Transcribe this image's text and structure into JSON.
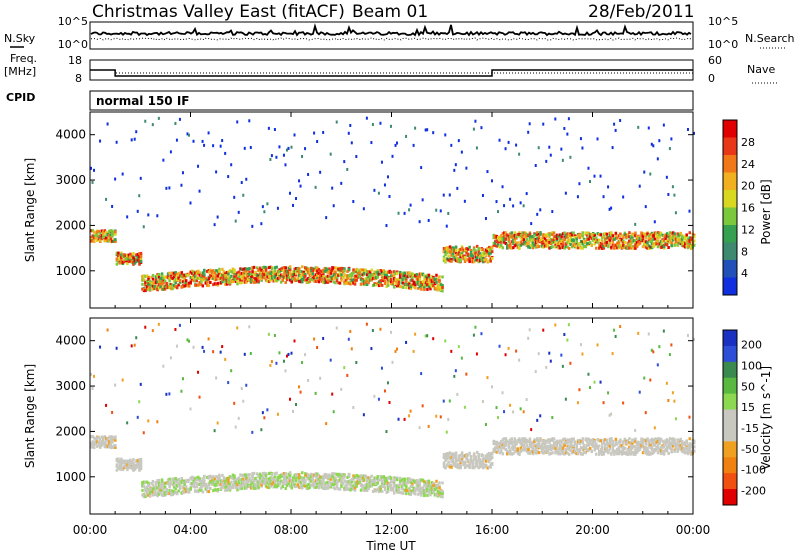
{
  "header": {
    "title": "Christmas Valley East (fitACF)",
    "beam": "Beam 01",
    "date": "28/Feb/2011"
  },
  "labels": {
    "nsky": "N.Sky",
    "nsearch": "N.Search",
    "freq": "Freq.",
    "freq_unit": "[MHz]",
    "nave": "Nave",
    "cpid": "CPID",
    "mode": "normal 150 IF"
  },
  "noise_axes": {
    "left_ticks": [
      "10^5",
      "10^0"
    ],
    "right_ticks": [
      "10^5",
      "10^0"
    ]
  },
  "freq_axes": {
    "left_ticks": [
      "18",
      "8"
    ],
    "right_ticks": [
      "60",
      "0"
    ]
  },
  "chart_data": [
    {
      "type": "heatmap",
      "name": "power",
      "ylabel": "Slant Range [km]",
      "ylim": [
        180,
        4500
      ],
      "yticks": [
        1000,
        2000,
        3000,
        4000
      ],
      "xlim": [
        0,
        24
      ],
      "colorbar": {
        "label": "Power [dB]",
        "ticks": [
          "4",
          "8",
          "12",
          "16",
          "20",
          "24",
          "28"
        ],
        "colors": [
          "#1030e0",
          "#2050b8",
          "#3e8a70",
          "#34a050",
          "#7cc83c",
          "#d8d820",
          "#f0b020",
          "#f07818",
          "#e83818",
          "#e00000"
        ]
      }
    },
    {
      "type": "heatmap",
      "name": "velocity",
      "ylabel": "Slant Range [km]",
      "ylim": [
        180,
        4500
      ],
      "yticks": [
        1000,
        2000,
        3000,
        4000
      ],
      "xlim": [
        0,
        24
      ],
      "xlabel": "Time UT",
      "xticks": [
        "00:00",
        "04:00",
        "08:00",
        "12:00",
        "16:00",
        "20:00",
        "00:00"
      ],
      "colorbar": {
        "label": "Velocity [m s^-1]",
        "ticks": [
          "200",
          "100",
          "50",
          "15",
          "-15",
          "-50",
          "-100",
          "-200"
        ],
        "colors": [
          "#1a30c0",
          "#2e4ed8",
          "#3a8a50",
          "#58b840",
          "#8cd850",
          "#c8c8c0",
          "#c8c8c0",
          "#f0a020",
          "#f08010",
          "#f05010",
          "#e00000"
        ]
      }
    },
    {
      "type": "line",
      "name": "frequency",
      "x": [
        0,
        1,
        1,
        16,
        16,
        24
      ],
      "values": [
        13,
        13,
        10,
        10,
        13,
        13
      ],
      "ylim": [
        8,
        18
      ]
    }
  ]
}
